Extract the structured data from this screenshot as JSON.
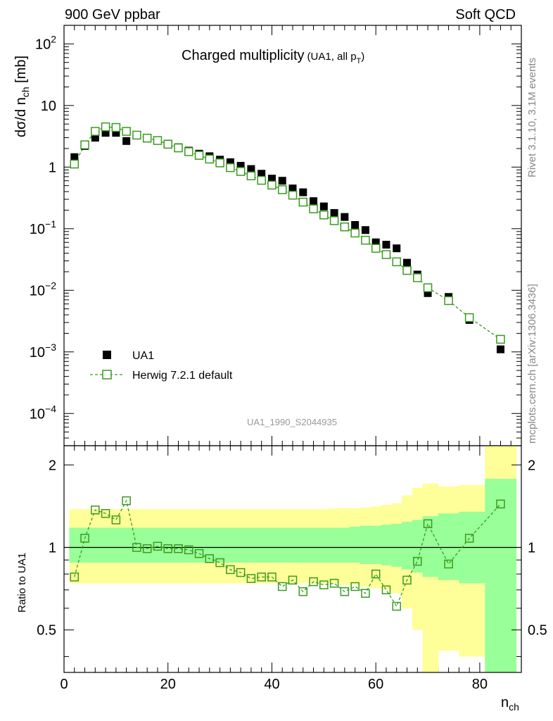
{
  "header": {
    "left_label": "900 GeV ppbar",
    "right_label": "Soft QCD"
  },
  "side_labels": {
    "rivet": "Rivet 3.1.10,  3.1M events",
    "mcplots": "mcplots.cern.ch [arXiv:1306.3436]"
  },
  "chart_data": {
    "type": "scatter",
    "title": "Charged multiplicity",
    "subtitle": "(UA1, all p",
    "subtitle_sub": "T",
    "subtitle_close": ")",
    "analysis_id": "UA1_1990_S2044935",
    "xlabel": "n",
    "xlabel_sub": "ch",
    "ylabel_main": "dσ/d n",
    "ylabel_sub": "ch",
    "ylabel_unit": " [mb]",
    "ratio_ylabel": "Ratio to UA1",
    "xlim": [
      0,
      88
    ],
    "ylim_log": [
      3e-05,
      200
    ],
    "ratio_ylim": [
      0.35,
      2.35
    ],
    "x_ticks": [
      "0",
      "20",
      "40",
      "60",
      "80"
    ],
    "y_ticks_main": [
      {
        "base": "10",
        "exp": "2"
      },
      {
        "base": "10",
        "exp": ""
      },
      {
        "base": "1",
        "exp": ""
      },
      {
        "base": "10",
        "exp": "−1"
      },
      {
        "base": "10",
        "exp": "−2"
      },
      {
        "base": "10",
        "exp": "−3"
      },
      {
        "base": "10",
        "exp": "−4"
      }
    ],
    "y_ticks_ratio": [
      "2",
      "1",
      "0.5"
    ],
    "legend": [
      {
        "name": "UA1",
        "style": "filled-square",
        "color": "#000000"
      },
      {
        "name": "Herwig 7.2.1 default",
        "style": "open-square-dashed",
        "color": "#3a9a1f"
      }
    ],
    "x": [
      2,
      4,
      6,
      8,
      10,
      12,
      14,
      16,
      18,
      20,
      22,
      24,
      26,
      28,
      30,
      32,
      34,
      36,
      38,
      40,
      42,
      44,
      46,
      48,
      50,
      52,
      54,
      56,
      58,
      60,
      62,
      64,
      66,
      68,
      70,
      74,
      78,
      84
    ],
    "series": [
      {
        "name": "UA1",
        "values": [
          1.45,
          2.2,
          3.0,
          3.6,
          3.6,
          2.65,
          3.3,
          3.0,
          2.7,
          2.4,
          2.1,
          1.85,
          1.65,
          1.5,
          1.32,
          1.2,
          1.05,
          0.93,
          0.78,
          0.65,
          0.6,
          0.45,
          0.39,
          0.28,
          0.23,
          0.18,
          0.155,
          0.115,
          0.095,
          0.06,
          0.055,
          0.048,
          0.028,
          0.018,
          0.009,
          0.0078,
          0.0033,
          0.0011
        ]
      },
      {
        "name": "Herwig 7.2.1 default",
        "values": [
          1.12,
          2.3,
          3.8,
          4.5,
          4.4,
          3.8,
          3.3,
          2.95,
          2.7,
          2.35,
          2.05,
          1.78,
          1.55,
          1.35,
          1.17,
          0.98,
          0.85,
          0.72,
          0.61,
          0.51,
          0.43,
          0.35,
          0.27,
          0.21,
          0.167,
          0.135,
          0.107,
          0.085,
          0.065,
          0.048,
          0.038,
          0.029,
          0.021,
          0.016,
          0.011,
          0.0068,
          0.0036,
          0.0016
        ]
      }
    ],
    "ratio_x": [
      2,
      4,
      6,
      8,
      10,
      12,
      14,
      16,
      18,
      20,
      22,
      24,
      26,
      28,
      30,
      32,
      34,
      36,
      38,
      40,
      42,
      44,
      46,
      48,
      50,
      52,
      54,
      56,
      58,
      60,
      62,
      64,
      66,
      68,
      70,
      74,
      78,
      84
    ],
    "ratio_values": [
      0.78,
      1.08,
      1.37,
      1.33,
      1.26,
      1.48,
      1.0,
      0.99,
      1.01,
      0.99,
      0.99,
      0.98,
      0.95,
      0.91,
      0.88,
      0.83,
      0.81,
      0.77,
      0.78,
      0.78,
      0.72,
      0.76,
      0.69,
      0.75,
      0.73,
      0.74,
      0.69,
      0.72,
      0.68,
      0.8,
      0.7,
      0.61,
      0.76,
      0.89,
      1.22,
      0.87,
      1.08,
      1.44
    ],
    "band_edges": [
      1,
      3,
      5,
      7,
      9,
      11,
      13,
      15,
      17,
      19,
      21,
      23,
      25,
      27,
      29,
      31,
      33,
      35,
      37,
      39,
      41,
      43,
      45,
      47,
      49,
      51,
      53,
      55,
      57,
      59,
      61,
      63,
      65,
      67,
      69,
      72,
      76,
      81,
      87
    ],
    "band_stat": [
      [
        0.88,
        1.18
      ],
      [
        0.88,
        1.18
      ],
      [
        0.88,
        1.18
      ],
      [
        0.88,
        1.18
      ],
      [
        0.88,
        1.18
      ],
      [
        0.88,
        1.18
      ],
      [
        0.88,
        1.18
      ],
      [
        0.88,
        1.18
      ],
      [
        0.88,
        1.18
      ],
      [
        0.88,
        1.18
      ],
      [
        0.88,
        1.18
      ],
      [
        0.88,
        1.18
      ],
      [
        0.88,
        1.18
      ],
      [
        0.88,
        1.18
      ],
      [
        0.88,
        1.18
      ],
      [
        0.88,
        1.18
      ],
      [
        0.88,
        1.18
      ],
      [
        0.88,
        1.18
      ],
      [
        0.88,
        1.18
      ],
      [
        0.88,
        1.18
      ],
      [
        0.88,
        1.18
      ],
      [
        0.88,
        1.18
      ],
      [
        0.88,
        1.18
      ],
      [
        0.88,
        1.18
      ],
      [
        0.88,
        1.18
      ],
      [
        0.88,
        1.18
      ],
      [
        0.88,
        1.18
      ],
      [
        0.88,
        1.19
      ],
      [
        0.87,
        1.2
      ],
      [
        0.87,
        1.2
      ],
      [
        0.86,
        1.21
      ],
      [
        0.85,
        1.22
      ],
      [
        0.83,
        1.24
      ],
      [
        0.81,
        1.26
      ],
      [
        0.78,
        1.3
      ],
      [
        0.76,
        1.33
      ],
      [
        0.74,
        1.35
      ],
      [
        0.35,
        1.78
      ]
    ],
    "band_total": [
      [
        0.74,
        1.38
      ],
      [
        0.74,
        1.38
      ],
      [
        0.74,
        1.38
      ],
      [
        0.74,
        1.38
      ],
      [
        0.74,
        1.38
      ],
      [
        0.74,
        1.38
      ],
      [
        0.74,
        1.38
      ],
      [
        0.74,
        1.38
      ],
      [
        0.74,
        1.38
      ],
      [
        0.74,
        1.38
      ],
      [
        0.74,
        1.38
      ],
      [
        0.74,
        1.38
      ],
      [
        0.74,
        1.38
      ],
      [
        0.74,
        1.38
      ],
      [
        0.74,
        1.38
      ],
      [
        0.74,
        1.38
      ],
      [
        0.74,
        1.38
      ],
      [
        0.74,
        1.38
      ],
      [
        0.74,
        1.38
      ],
      [
        0.74,
        1.38
      ],
      [
        0.74,
        1.38
      ],
      [
        0.74,
        1.38
      ],
      [
        0.74,
        1.38
      ],
      [
        0.74,
        1.38
      ],
      [
        0.74,
        1.38
      ],
      [
        0.74,
        1.39
      ],
      [
        0.73,
        1.39
      ],
      [
        0.73,
        1.39
      ],
      [
        0.72,
        1.4
      ],
      [
        0.71,
        1.41
      ],
      [
        0.7,
        1.43
      ],
      [
        0.68,
        1.45
      ],
      [
        0.6,
        1.55
      ],
      [
        0.5,
        1.65
      ],
      [
        0.35,
        1.71
      ],
      [
        0.42,
        1.67
      ],
      [
        0.4,
        1.69
      ],
      [
        0.35,
        2.35
      ]
    ],
    "colors": {
      "data": "#000000",
      "mc": "#3a9a1f",
      "band_stat": "#99ff99",
      "band_total": "#ffff99"
    }
  }
}
